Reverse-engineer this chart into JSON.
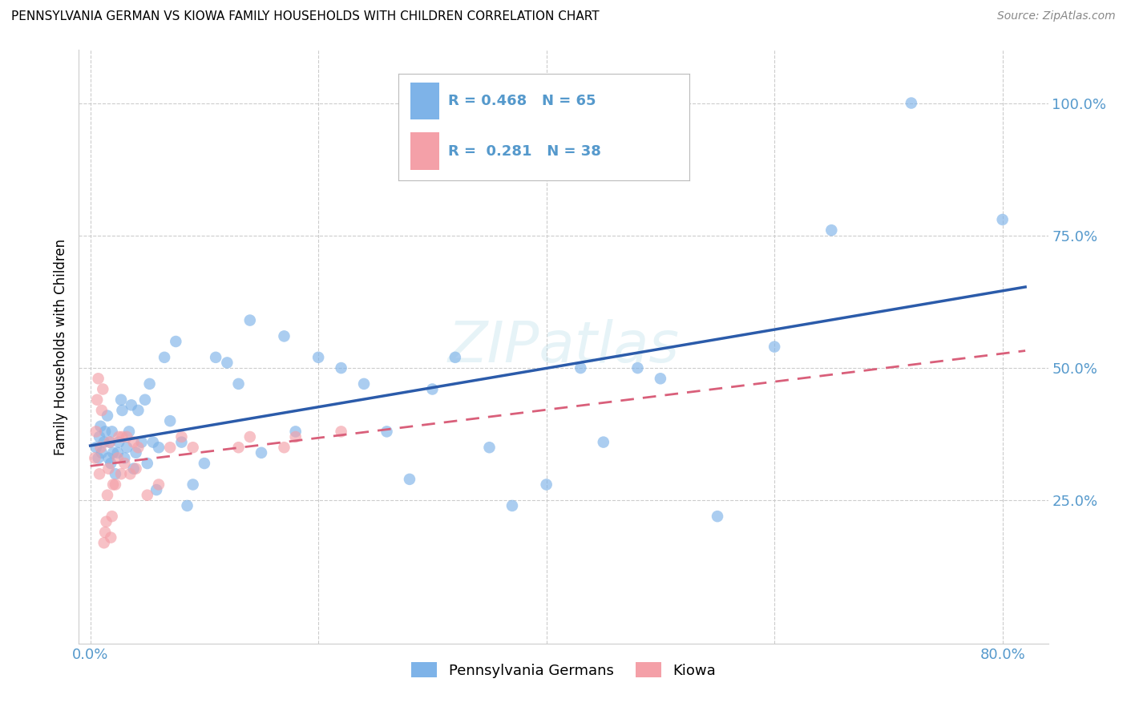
{
  "title": "PENNSYLVANIA GERMAN VS KIOWA FAMILY HOUSEHOLDS WITH CHILDREN CORRELATION CHART",
  "source": "Source: ZipAtlas.com",
  "ylabel": "Family Households with Children",
  "xlim": [
    -0.01,
    0.84
  ],
  "ylim": [
    -0.02,
    1.1
  ],
  "x_tick_positions": [
    0.0,
    0.2,
    0.4,
    0.6,
    0.8
  ],
  "x_tick_labels": [
    "0.0%",
    "",
    "",
    "",
    "80.0%"
  ],
  "y_tick_positions": [
    0.25,
    0.5,
    0.75,
    1.0
  ],
  "y_tick_labels": [
    "25.0%",
    "50.0%",
    "75.0%",
    "100.0%"
  ],
  "blue_color": "#7EB3E8",
  "pink_color": "#F4A0A8",
  "blue_line_color": "#2B5BAA",
  "pink_line_color": "#D95F7A",
  "background_color": "#FFFFFF",
  "grid_color": "#CCCCCC",
  "tick_label_color": "#5599CC",
  "legend_label_blue": "Pennsylvania Germans",
  "legend_label_pink": "Kiowa",
  "watermark": "ZIPatlas",
  "blue_R": "0.468",
  "blue_N": "65",
  "pink_R": "0.281",
  "pink_N": "38",
  "blue_points_x": [
    0.005,
    0.007,
    0.008,
    0.009,
    0.01,
    0.012,
    0.013,
    0.015,
    0.016,
    0.017,
    0.018,
    0.019,
    0.02,
    0.022,
    0.024,
    0.025,
    0.027,
    0.028,
    0.03,
    0.032,
    0.034,
    0.036,
    0.038,
    0.04,
    0.042,
    0.045,
    0.048,
    0.05,
    0.052,
    0.055,
    0.058,
    0.06,
    0.065,
    0.07,
    0.075,
    0.08,
    0.085,
    0.09,
    0.1,
    0.11,
    0.12,
    0.13,
    0.14,
    0.15,
    0.17,
    0.18,
    0.2,
    0.22,
    0.24,
    0.26,
    0.28,
    0.3,
    0.32,
    0.35,
    0.37,
    0.4,
    0.43,
    0.45,
    0.48,
    0.5,
    0.55,
    0.6,
    0.65,
    0.72,
    0.8
  ],
  "blue_points_y": [
    0.35,
    0.33,
    0.37,
    0.39,
    0.34,
    0.36,
    0.38,
    0.41,
    0.33,
    0.36,
    0.32,
    0.38,
    0.34,
    0.3,
    0.34,
    0.36,
    0.44,
    0.42,
    0.33,
    0.35,
    0.38,
    0.43,
    0.31,
    0.34,
    0.42,
    0.36,
    0.44,
    0.32,
    0.47,
    0.36,
    0.27,
    0.35,
    0.52,
    0.4,
    0.55,
    0.36,
    0.24,
    0.28,
    0.32,
    0.52,
    0.51,
    0.47,
    0.59,
    0.34,
    0.56,
    0.38,
    0.52,
    0.5,
    0.47,
    0.38,
    0.29,
    0.46,
    0.52,
    0.35,
    0.24,
    0.28,
    0.5,
    0.36,
    0.5,
    0.48,
    0.22,
    0.54,
    0.76,
    1.0,
    0.78
  ],
  "pink_points_x": [
    0.004,
    0.005,
    0.006,
    0.007,
    0.008,
    0.009,
    0.01,
    0.011,
    0.012,
    0.013,
    0.014,
    0.015,
    0.016,
    0.017,
    0.018,
    0.019,
    0.02,
    0.022,
    0.024,
    0.025,
    0.027,
    0.028,
    0.03,
    0.032,
    0.035,
    0.038,
    0.04,
    0.042,
    0.05,
    0.06,
    0.07,
    0.08,
    0.09,
    0.13,
    0.14,
    0.17,
    0.18,
    0.22
  ],
  "pink_points_y": [
    0.33,
    0.38,
    0.44,
    0.48,
    0.3,
    0.35,
    0.42,
    0.46,
    0.17,
    0.19,
    0.21,
    0.26,
    0.31,
    0.36,
    0.18,
    0.22,
    0.28,
    0.28,
    0.33,
    0.37,
    0.3,
    0.37,
    0.32,
    0.37,
    0.3,
    0.36,
    0.31,
    0.35,
    0.26,
    0.28,
    0.35,
    0.37,
    0.35,
    0.35,
    0.37,
    0.35,
    0.37,
    0.38
  ]
}
